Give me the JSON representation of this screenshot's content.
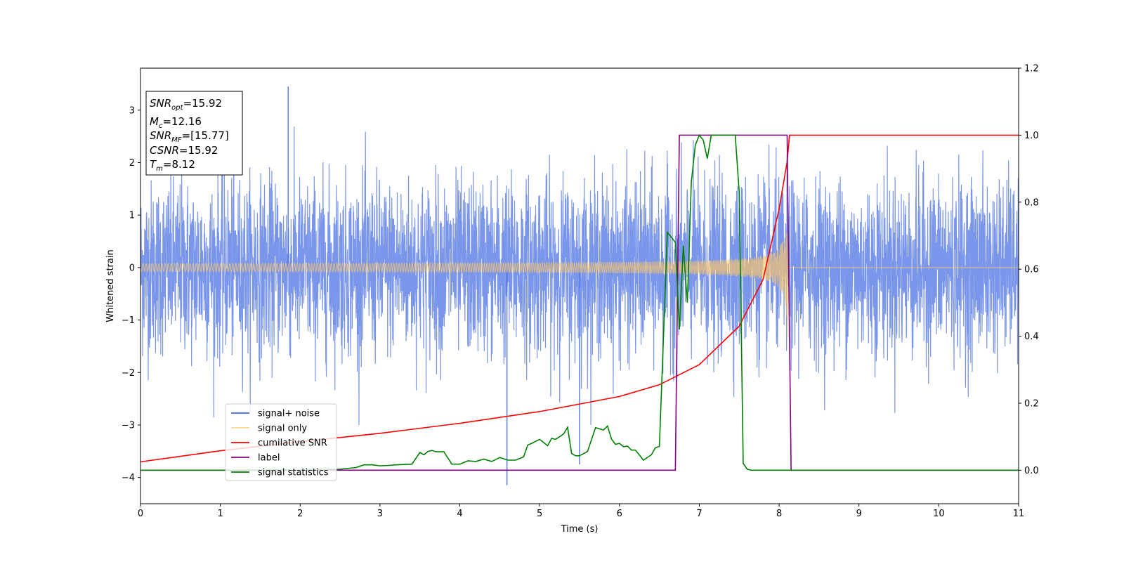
{
  "chart_data": {
    "type": "line",
    "xlabel": "Time (s)",
    "ylabel": "Whitened strain",
    "xlim": [
      0,
      11
    ],
    "ylim_left": [
      -4.5,
      3.8
    ],
    "ylim_right": [
      -0.1,
      1.2
    ],
    "x_ticks": [
      0,
      1,
      2,
      3,
      4,
      5,
      6,
      7,
      8,
      9,
      10,
      11
    ],
    "y_ticks_left": [
      -4,
      -3,
      -2,
      -1,
      0,
      1,
      2,
      3
    ],
    "y_ticks_right": [
      "0.0",
      "0.2",
      "0.4",
      "0.6",
      "0.8",
      "1.0",
      "1.2"
    ],
    "grid": false,
    "legend_position": "lower-left",
    "annotation": {
      "lines": [
        {
          "symbol": "SNR",
          "sub": "opt",
          "value": "=15.92"
        },
        {
          "symbol": "M",
          "sub": "c",
          "value": "=12.16"
        },
        {
          "symbol": "SNR",
          "sub": "MF",
          "value": "=[15.77]"
        },
        {
          "symbol": "CSNR",
          "sub": "",
          "value": "=15.92"
        },
        {
          "symbol": "T",
          "sub": "m",
          "value": "=8.12"
        }
      ]
    },
    "series": [
      {
        "name": "signal+ noise",
        "axis": "left",
        "color": "#4169e1",
        "kind": "noise",
        "envelope_typical": 1.6,
        "spikes": [
          {
            "x": 1.85,
            "y": 3.45
          },
          {
            "x": 4.59,
            "y": -4.15
          },
          {
            "x": 5.5,
            "y": -3.75
          }
        ]
      },
      {
        "name": "signal only",
        "axis": "left",
        "color": "#ffc864",
        "kind": "chirp",
        "t_merge": 8.12,
        "amp_start": 0.05,
        "amp_end": 1.05
      },
      {
        "name": "cumilative SNR",
        "axis": "right",
        "color": "#ff0000",
        "x": [
          0,
          1,
          2,
          3,
          4,
          5,
          6,
          6.5,
          7,
          7.5,
          7.8,
          8.0,
          8.1,
          8.13,
          11
        ],
        "y": [
          0.025,
          0.058,
          0.085,
          0.11,
          0.14,
          0.175,
          0.22,
          0.255,
          0.315,
          0.43,
          0.57,
          0.78,
          0.92,
          1.0,
          1.0
        ]
      },
      {
        "name": "label",
        "axis": "right",
        "color": "#800080",
        "x": [
          0,
          6.7,
          6.75,
          8.1,
          8.15,
          11
        ],
        "y": [
          0,
          0,
          1,
          1,
          0,
          0
        ]
      },
      {
        "name": "signal statistics",
        "axis": "right",
        "color": "#008000",
        "x": [
          0,
          1,
          2,
          2.5,
          2.7,
          2.8,
          2.9,
          3.0,
          3.1,
          3.2,
          3.3,
          3.4,
          3.5,
          3.55,
          3.6,
          3.65,
          3.7,
          3.8,
          3.9,
          4.0,
          4.1,
          4.2,
          4.3,
          4.4,
          4.5,
          4.6,
          4.7,
          4.8,
          4.85,
          4.9,
          5.0,
          5.1,
          5.15,
          5.2,
          5.3,
          5.35,
          5.4,
          5.45,
          5.5,
          5.6,
          5.7,
          5.8,
          5.85,
          5.9,
          5.95,
          6.0,
          6.05,
          6.1,
          6.15,
          6.2,
          6.3,
          6.4,
          6.45,
          6.5,
          6.6,
          6.7,
          6.75,
          6.8,
          6.85,
          6.9,
          6.95,
          7.0,
          7.05,
          7.1,
          7.15,
          7.2,
          7.25,
          7.3,
          7.35,
          7.4,
          7.45,
          7.5,
          7.55,
          7.6,
          7.65,
          7.7,
          7.8,
          7.9,
          8.0,
          8.05,
          8.1,
          8.15,
          8.2,
          8.25,
          8.3,
          11
        ],
        "y": [
          0,
          0,
          0.001,
          0.003,
          0.008,
          0.016,
          0.016,
          0.013,
          0.014,
          0.016,
          0.017,
          0.018,
          0.053,
          0.046,
          0.056,
          0.059,
          0.055,
          0.055,
          0.018,
          0.018,
          0.028,
          0.026,
          0.033,
          0.026,
          0.038,
          0.03,
          0.03,
          0.04,
          0.075,
          0.08,
          0.092,
          0.073,
          0.095,
          0.092,
          0.108,
          0.128,
          0.05,
          0.043,
          0.043,
          0.056,
          0.127,
          0.12,
          0.132,
          0.093,
          0.077,
          0.08,
          0.07,
          0.072,
          0.06,
          0.06,
          0.03,
          0.046,
          0.067,
          0.071,
          0.71,
          0.68,
          0.42,
          0.67,
          0.5,
          0.86,
          0.97,
          1.0,
          0.985,
          0.93,
          1.0,
          1.0,
          1.0,
          1.0,
          1.0,
          1.0,
          1.0,
          0.83,
          0.02,
          0.003,
          0.0,
          0.0,
          0.0,
          0.0,
          0.0,
          0.0,
          0.0,
          0.0,
          0.0,
          0.0,
          0.0,
          0.0
        ]
      }
    ]
  }
}
